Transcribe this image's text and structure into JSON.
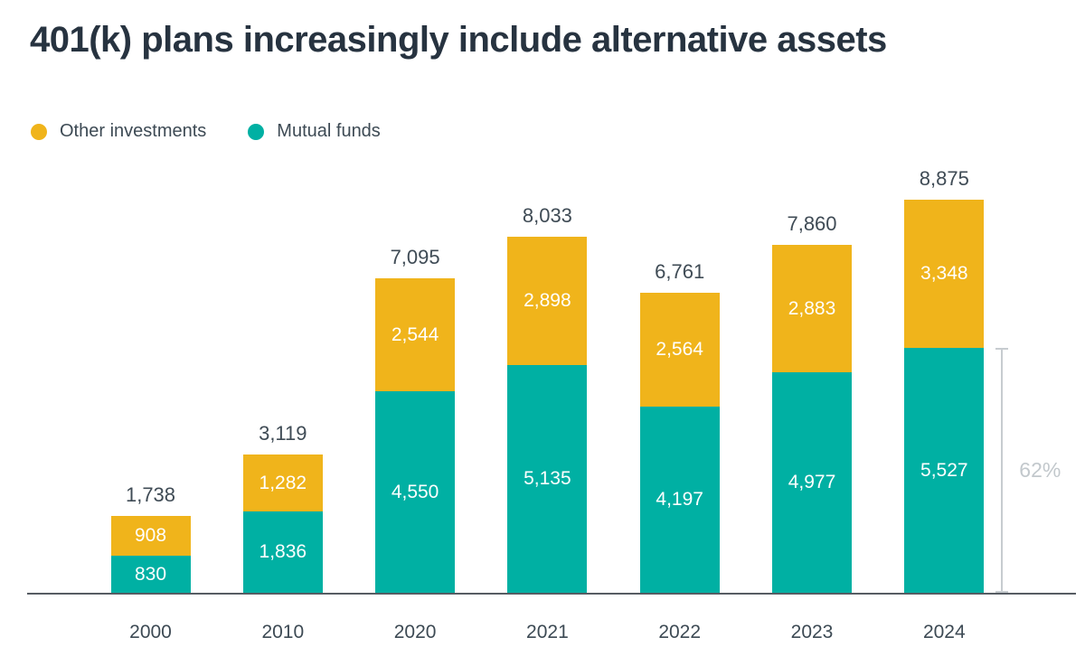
{
  "title": "401(k) plans increasingly include alternative assets",
  "legend": {
    "items": [
      {
        "label": "Other investments",
        "color": "#F0B41B"
      },
      {
        "label": "Mutual funds",
        "color": "#00B0A3"
      }
    ]
  },
  "chart_data": {
    "type": "bar",
    "stacked": true,
    "title": "401(k) plans increasingly include alternative assets",
    "categories": [
      "2000",
      "2010",
      "2020",
      "2021",
      "2022",
      "2023",
      "2024"
    ],
    "series": [
      {
        "name": "Mutual funds",
        "color": "#00B0A3",
        "values": [
          830,
          1836,
          4550,
          5135,
          4197,
          4977,
          5527
        ]
      },
      {
        "name": "Other investments",
        "color": "#F0B41B",
        "values": [
          908,
          1282,
          2544,
          2898,
          2564,
          2883,
          3348
        ]
      }
    ],
    "totals": [
      1738,
      3119,
      7095,
      8033,
      6761,
      7860,
      8875
    ],
    "xlabel": "",
    "ylabel": "",
    "grid": false,
    "legend_position": "top-left",
    "annotation": {
      "label": "62%",
      "category": "2024",
      "series": "Mutual funds"
    }
  },
  "colors": {
    "title_text": "#273340",
    "label_text": "#3d4a54",
    "segment_label_text": "#ffffff",
    "axis_line": "#565c63",
    "annotation": "#c2c8cc"
  }
}
